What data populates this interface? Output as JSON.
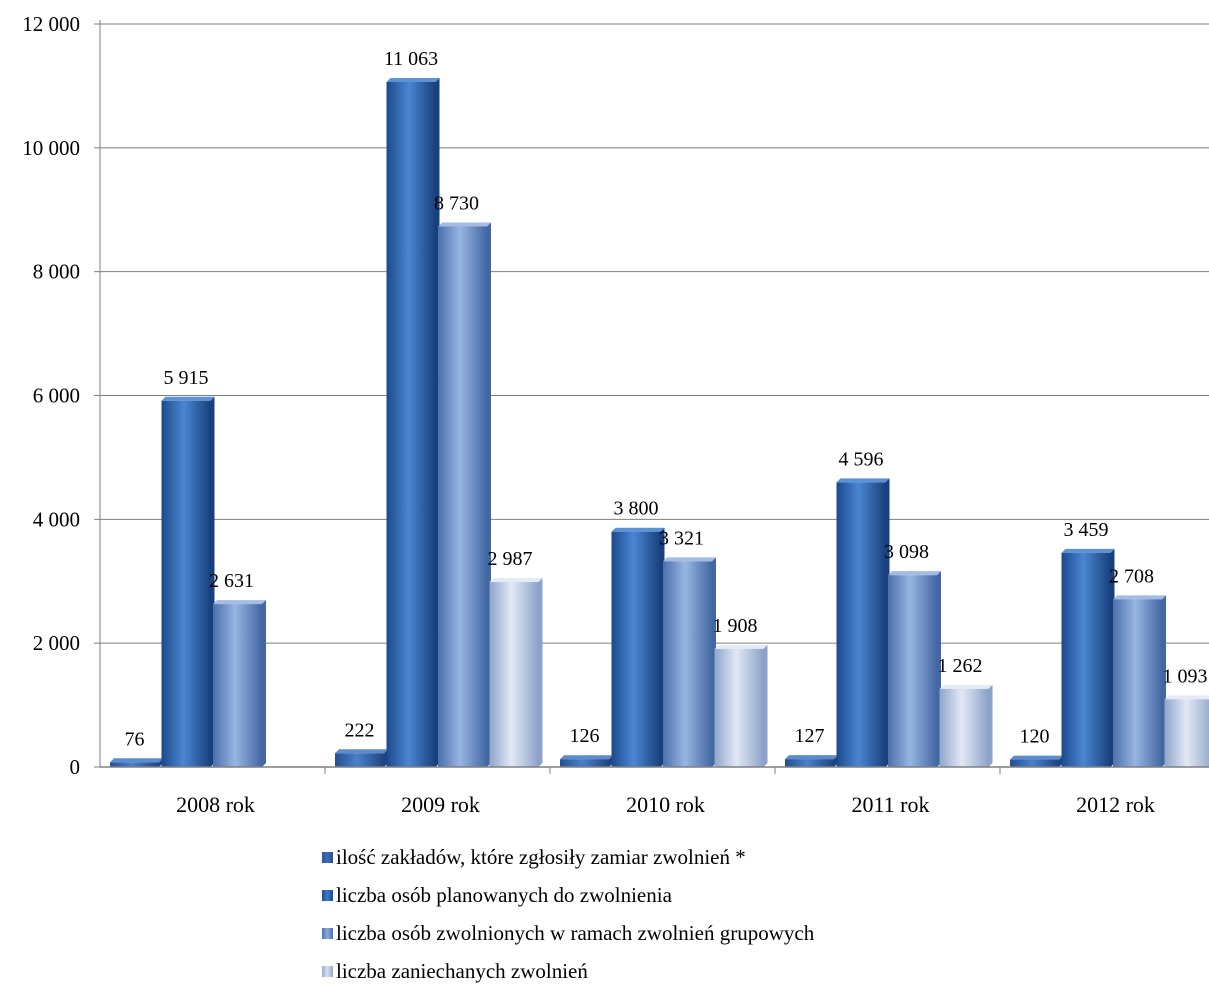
{
  "chart_data": {
    "type": "bar",
    "title": "",
    "xlabel": "",
    "ylabel": "",
    "ylim": [
      0,
      12000
    ],
    "yticks": [
      0,
      2000,
      4000,
      6000,
      8000,
      10000,
      12000
    ],
    "ytick_labels": [
      "0",
      "2 000",
      "4 000",
      "6 000",
      "8 000",
      "10 000",
      "12 000"
    ],
    "grid": true,
    "legend_position": "bottom",
    "categories": [
      "2008 rok",
      "2009 rok",
      "2010 rok",
      "2011 rok",
      "2012 rok"
    ],
    "series": [
      {
        "name": "ilość zakładów, które zgłosiły zamiar zwolnień *",
        "values": [
          76,
          222,
          126,
          127,
          120
        ],
        "labels": [
          "76",
          "222",
          "126",
          "127",
          "120"
        ],
        "color": "#3C6FB5"
      },
      {
        "name": "liczba osób planowanych do zwolnienia",
        "values": [
          5915,
          11063,
          3800,
          4596,
          3459
        ],
        "labels": [
          "5 915",
          "11 063",
          "3 800",
          "4 596",
          "3 459"
        ],
        "color": "#2F66B8"
      },
      {
        "name": "liczba osób zwolnionych w ramach zwolnień grupowych",
        "values": [
          2631,
          8730,
          3321,
          3098,
          2708
        ],
        "labels": [
          "2 631",
          "8 730",
          "3 321",
          "3 098",
          "2 708"
        ],
        "color": "#6E95CE"
      },
      {
        "name": "liczba zaniechanych zwolnień",
        "values": [
          null,
          2987,
          1908,
          1262,
          1093
        ],
        "labels": [
          "",
          "2 987",
          "1 908",
          "1 262",
          "1 093"
        ],
        "color": "#B9C8E3"
      }
    ]
  }
}
